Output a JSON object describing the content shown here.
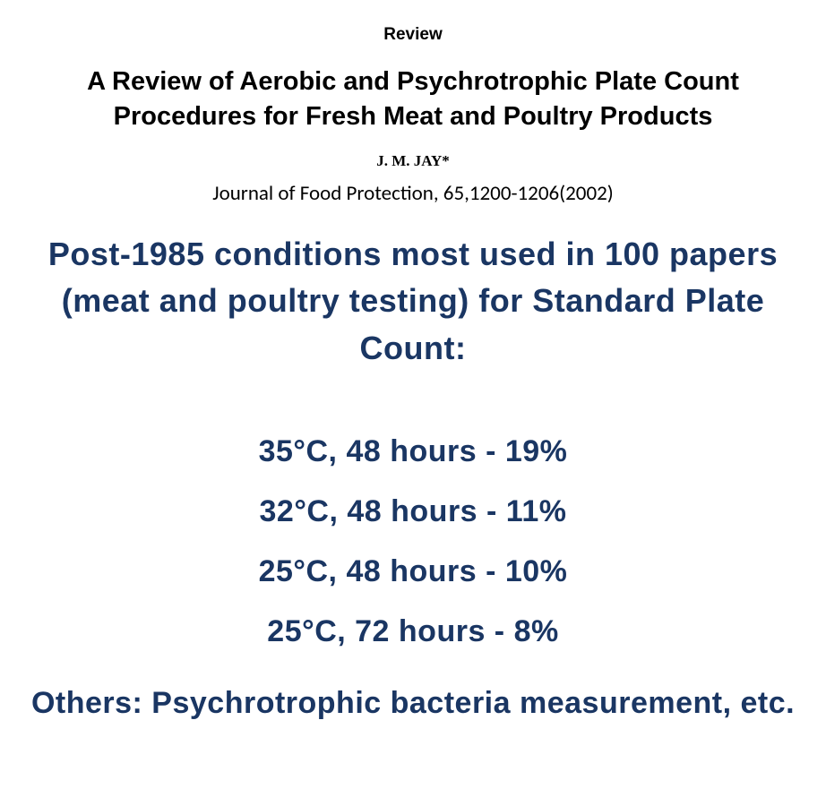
{
  "header": {
    "review_label": "Review",
    "title": "A Review of Aerobic and Psychrotrophic Plate Count Procedures for Fresh Meat and Poultry Products",
    "author": "J. M. JAY*",
    "citation": "Journal of Food Protection, 65,1200-1206(2002)"
  },
  "summary": {
    "heading": "Post-1985 conditions most used in 100 papers (meat and poultry testing) for Standard Plate Count:",
    "conditions": [
      "35°C, 48 hours - 19%",
      "32°C, 48 hours - 11%",
      "25°C, 48 hours - 10%",
      "25°C, 72 hours - 8%"
    ],
    "others": "Others: Psychrotrophic bacteria measurement, etc."
  },
  "styling": {
    "background_color": "#ffffff",
    "header_text_color": "#000000",
    "accent_text_color": "#1a3663",
    "review_label_fontsize": 19,
    "title_fontsize": 29,
    "author_fontsize": 17,
    "citation_fontsize": 23,
    "summary_heading_fontsize": 36,
    "condition_fontsize": 34,
    "header_font": "Arial",
    "author_font": "Times New Roman",
    "citation_font": "Calibri",
    "body_font": "Trebuchet MS"
  }
}
